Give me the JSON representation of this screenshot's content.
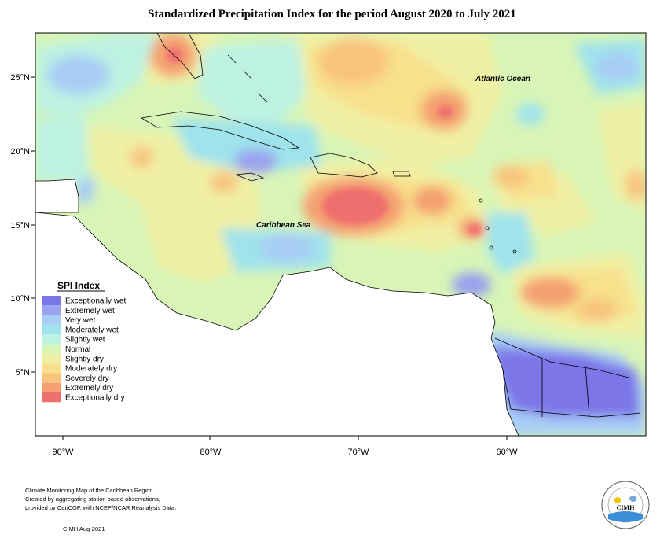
{
  "title": "Standardized Precipitation Index for the period August 2020 to July 2021",
  "ocean_labels": {
    "atlantic": "Atlantic Ocean",
    "caribbean": "Caribbean Sea"
  },
  "axes": {
    "lat_ticks": [
      "25°N",
      "20°N",
      "15°N",
      "10°N",
      "5°N"
    ],
    "lon_ticks": [
      "90°W",
      "80°W",
      "70°W",
      "60°W"
    ]
  },
  "legend": {
    "title": "SPI Index",
    "items": [
      {
        "label": "Exceptionally wet",
        "color": "#7b76e8"
      },
      {
        "label": "Extremely wet",
        "color": "#9aa3ee"
      },
      {
        "label": "Very wet",
        "color": "#a9cdf5"
      },
      {
        "label": "Moderately wet",
        "color": "#9fe3ec"
      },
      {
        "label": "Slightly wet",
        "color": "#bdf2e2"
      },
      {
        "label": "Normal",
        "color": "#d8f5b7"
      },
      {
        "label": "Slightly dry",
        "color": "#f0f0a4"
      },
      {
        "label": "Moderately dry",
        "color": "#f8e08c"
      },
      {
        "label": "Severely dry",
        "color": "#f8c47e"
      },
      {
        "label": "Extremely dry",
        "color": "#f4a071"
      },
      {
        "label": "Exceptionally dry",
        "color": "#ef6e6e"
      }
    ]
  },
  "credits": {
    "line1": "Climate Monitoring Map of the Caribbean Region.",
    "line2": "Created by aggregating station based observations,",
    "line3": "provided by CariCOF, with NCEP/NCAR Reanalysis Data.",
    "date": "CIMH Aug-2021"
  },
  "logo": {
    "text": "CIMH"
  }
}
